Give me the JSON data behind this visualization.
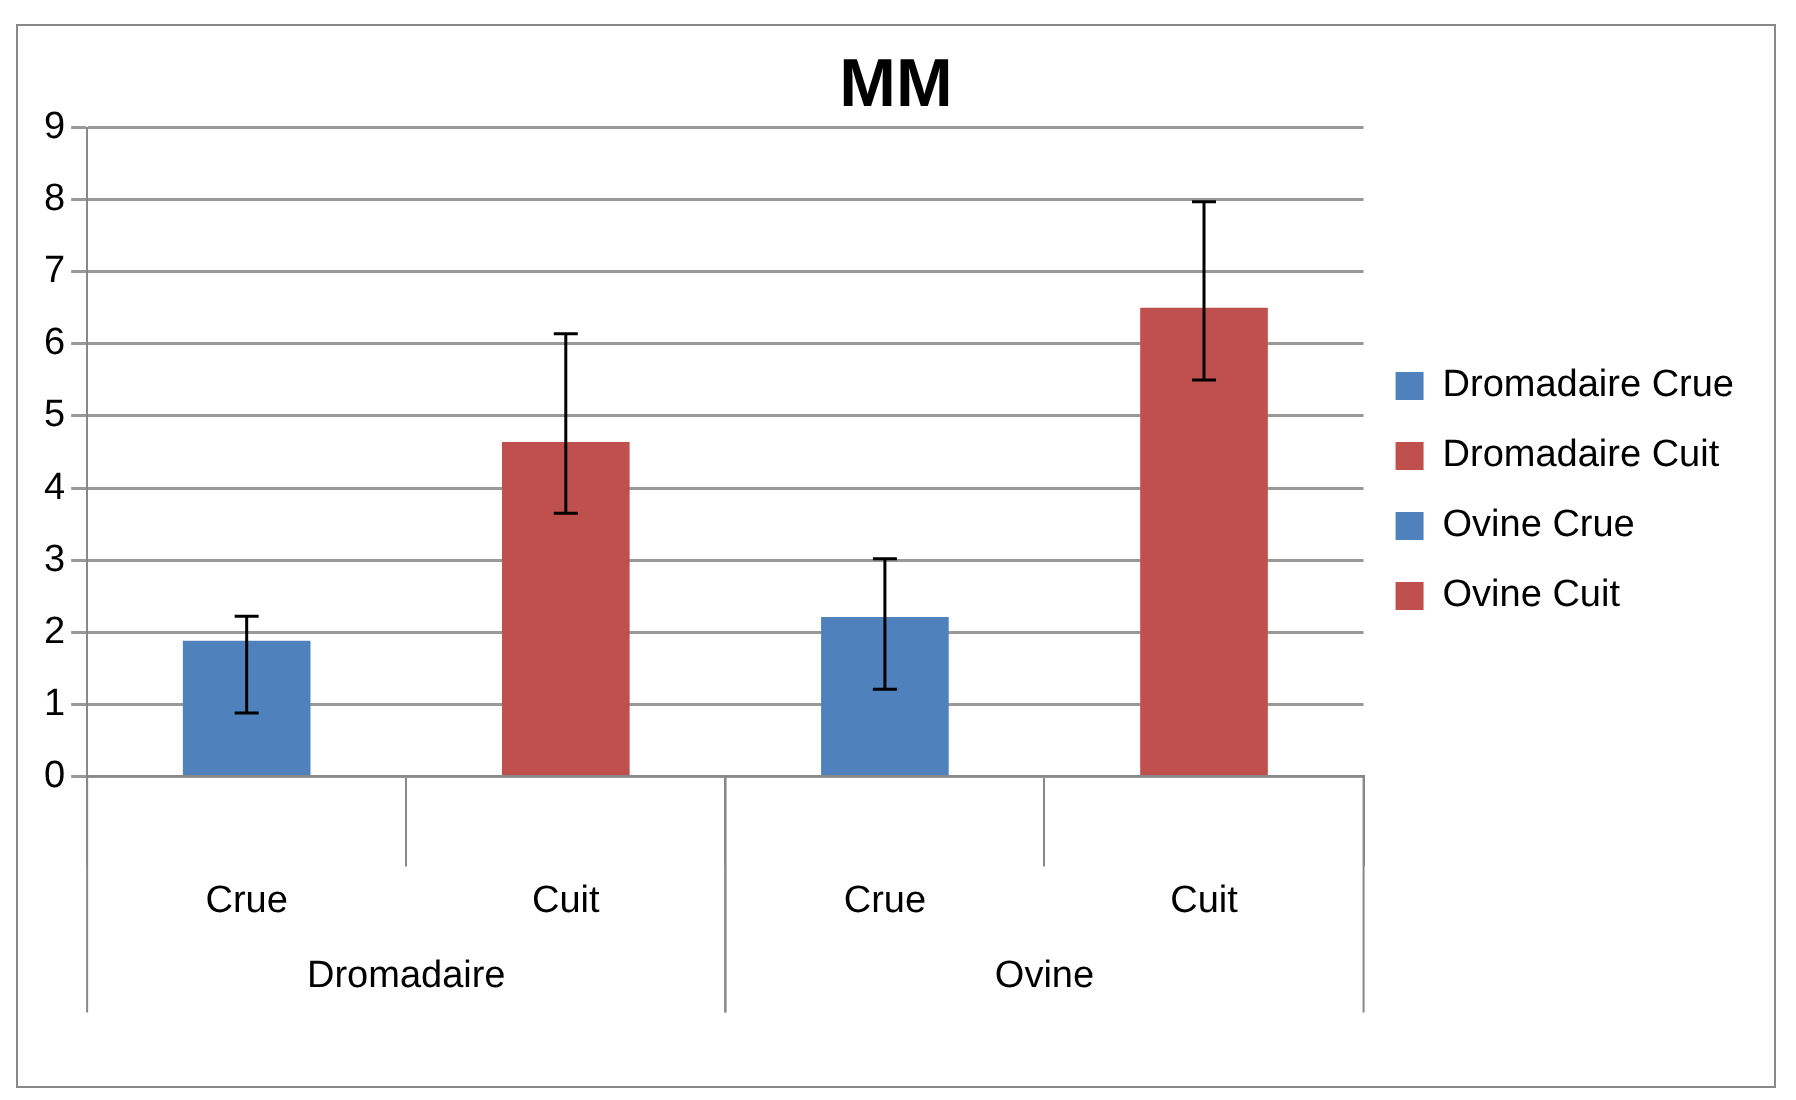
{
  "chart_data": {
    "type": "bar",
    "title": "MM",
    "categories": [
      "Crue",
      "Cuit",
      "Crue",
      "Cuit"
    ],
    "series": [
      {
        "name": "Dromadaire Crue",
        "color": "#4f81bd",
        "values": [
          1.88,
          null,
          null,
          null
        ],
        "errors": [
          [
            0.88,
            2.22
          ],
          null,
          null,
          null
        ]
      },
      {
        "name": "Dromadaire Cuit",
        "color": "#c0504d",
        "values": [
          null,
          4.64,
          null,
          null
        ],
        "errors": [
          null,
          [
            3.65,
            6.14
          ],
          null,
          null
        ]
      },
      {
        "name": "Ovine Crue",
        "color": "#4f81bd",
        "values": [
          null,
          null,
          2.21,
          null
        ],
        "errors": [
          null,
          null,
          [
            1.21,
            3.02
          ],
          null
        ]
      },
      {
        "name": "Ovine Cuit",
        "color": "#c0504d",
        "values": [
          null,
          null,
          null,
          6.5
        ],
        "errors": [
          null,
          null,
          null,
          [
            5.5,
            7.97
          ]
        ]
      }
    ],
    "ylim": [
      0,
      9
    ],
    "yticks": [
      0,
      1,
      2,
      3,
      4,
      5,
      6,
      7,
      8,
      9
    ],
    "grid": "y",
    "legend": "right",
    "annotations": [
      "Dromadaire",
      "Ovine"
    ]
  }
}
